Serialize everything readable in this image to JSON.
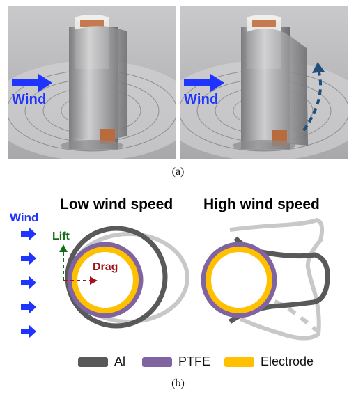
{
  "photos": {
    "left": {
      "wind_label": "Wind"
    },
    "right": {
      "wind_label": "Wind"
    }
  },
  "captions": {
    "a": "(a)",
    "b": "(b)"
  },
  "diagram": {
    "wind_label": "Wind",
    "low_title": "Low wind speed",
    "high_title": "High wind speed",
    "lift_label": "Lift",
    "drag_label": "Drag"
  },
  "legend": [
    {
      "label": "Al",
      "color": "#595959"
    },
    {
      "label": "PTFE",
      "color": "#8064a2"
    },
    {
      "label": "Electrode",
      "color": "#ffc000"
    }
  ],
  "colors": {
    "wind_blue": "#1f35ff",
    "lift_green": "#156d16",
    "drag_red": "#a11316",
    "dashed_curve": "#1f4e79",
    "ghost_gray": "#c8c8c8"
  },
  "icons": {
    "wind_arrow": "right-arrow-icon",
    "lift_arrow": "up-arrow-icon",
    "drag_arrow": "right-arrow-icon"
  }
}
